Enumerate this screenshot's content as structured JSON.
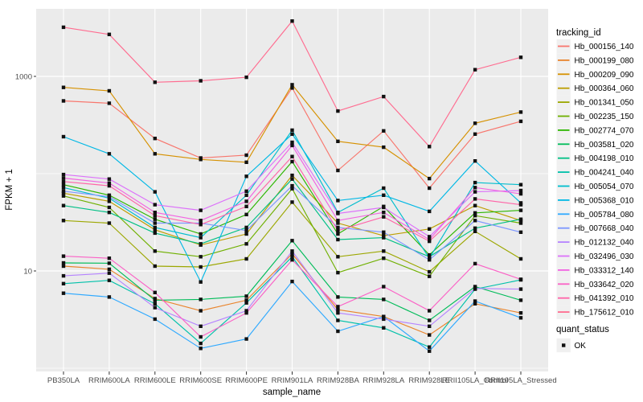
{
  "chart_data": {
    "type": "line",
    "title": "",
    "xlabel": "sample_name",
    "ylabel": "FPKM + 1",
    "y_scale": "log10",
    "y_ticks": [
      1000,
      10
    ],
    "y_minor": [
      100,
      1
    ],
    "grid": true,
    "legend_position": "right",
    "legend_title": "tracking_id",
    "quant_legend": {
      "title": "quant_status",
      "entries": [
        "OK"
      ]
    },
    "categories": [
      "PB350LA",
      "RRIM600LA",
      "RRIM600LE",
      "RRIM600SE",
      "RRIM600PE",
      "RRIM901LA",
      "RRIM928BA",
      "RRIM928LA",
      "RRIM928LE",
      "RRII105LA_Control",
      "RRII105LA_Stressed"
    ],
    "series": [
      {
        "name": "Hb_000156_140",
        "color": "#F8766D",
        "values": [
          560,
          530,
          230,
          145,
          155,
          760,
          108,
          275,
          71,
          255,
          345
        ]
      },
      {
        "name": "Hb_000199_080",
        "color": "#E9842C",
        "values": [
          11.2,
          10.4,
          5.2,
          3.9,
          5.0,
          15.0,
          4.0,
          3.4,
          2.2,
          4.6,
          3.7
        ]
      },
      {
        "name": "Hb_000209_090",
        "color": "#D69100",
        "values": [
          770,
          710,
          160,
          140,
          131,
          820,
          215,
          187,
          89,
          330,
          430
        ]
      },
      {
        "name": "Hb_000364_060",
        "color": "#BC9D00",
        "values": [
          63,
          52,
          26.5,
          18.5,
          24,
          96,
          31,
          23,
          27,
          47,
          33
        ]
      },
      {
        "name": "Hb_001341_050",
        "color": "#9CA700",
        "values": [
          33,
          31,
          11.2,
          11.0,
          13.3,
          51,
          14.0,
          16.0,
          9.8,
          25.5,
          13.3
        ]
      },
      {
        "name": "Hb_002235_150",
        "color": "#6FB000",
        "values": [
          59,
          45,
          16,
          14,
          19,
          70,
          9.6,
          13.5,
          8.8,
          37,
          31
        ]
      },
      {
        "name": "Hb_002774_070",
        "color": "#2CB600",
        "values": [
          77,
          60,
          34,
          24,
          38,
          133,
          24,
          46,
          14.6,
          39.5,
          42
        ]
      },
      {
        "name": "Hb_003581_020",
        "color": "#00BC59",
        "values": [
          12.1,
          12.0,
          5.0,
          5.1,
          5.5,
          20.5,
          5.4,
          5.1,
          3.1,
          6.9,
          5.0
        ]
      },
      {
        "name": "Hb_004198_010",
        "color": "#00C085",
        "values": [
          47,
          40,
          24.5,
          19,
          28,
          88,
          21,
          22,
          14.0,
          27.5,
          34
        ]
      },
      {
        "name": "Hb_004241_040",
        "color": "#00C1AA",
        "values": [
          7.4,
          8.0,
          4.6,
          1.8,
          4.7,
          14,
          3.1,
          2.6,
          1.65,
          6.5,
          8.1
        ]
      },
      {
        "name": "Hb_005054_070",
        "color": "#00BDCD",
        "values": [
          72,
          56,
          28,
          22,
          60,
          280,
          40,
          71,
          13.5,
          81,
          77
        ]
      },
      {
        "name": "Hb_005368_010",
        "color": "#00B8E5",
        "values": [
          240,
          160,
          65,
          7.7,
          94,
          255,
          53,
          60,
          41,
          135,
          50
        ]
      },
      {
        "name": "Hb_005784_080",
        "color": "#2FA9FF",
        "values": [
          5.9,
          5.4,
          3.2,
          1.6,
          2.0,
          7.8,
          2.4,
          3.4,
          1.5,
          4.9,
          3.3
        ]
      },
      {
        "name": "Hb_007668_040",
        "color": "#7C96FF",
        "values": [
          66,
          58,
          31,
          31,
          26,
          75,
          28,
          25,
          13.0,
          33,
          25
        ]
      },
      {
        "name": "Hb_012132_040",
        "color": "#B583FF",
        "values": [
          8.9,
          9.5,
          4.2,
          2.7,
          3.9,
          16,
          3.7,
          3.2,
          2.7,
          6.6,
          6.5
        ]
      },
      {
        "name": "Hb_032496_030",
        "color": "#DC71FA",
        "values": [
          98,
          88,
          48,
          42,
          66,
          210,
          39,
          45,
          22.5,
          65,
          67
        ]
      },
      {
        "name": "Hb_033312_140",
        "color": "#F263E2",
        "values": [
          90,
          80,
          40,
          33,
          52,
          195,
          33,
          40,
          21,
          72,
          62
        ]
      },
      {
        "name": "Hb_033642_020",
        "color": "#FB61C6",
        "values": [
          14.2,
          13.5,
          6.0,
          2.1,
          3.7,
          13.0,
          4.3,
          6.9,
          3.9,
          11.9,
          8.2
        ]
      },
      {
        "name": "Hb_041392_010",
        "color": "#FF65A8",
        "values": [
          83,
          75,
          37,
          30,
          46,
          150,
          26,
          36,
          20.2,
          55,
          48
        ]
      },
      {
        "name": "Hb_175612_010",
        "color": "#FF6C90",
        "values": [
          3200,
          2700,
          870,
          900,
          980,
          3700,
          440,
          620,
          190,
          1170,
          1570
        ]
      }
    ]
  },
  "colors": {
    "panel": "#EBEBEB",
    "grid": "#FFFFFF",
    "point": "#111111",
    "tick_mark": "#333333",
    "tick_text": "#4D4D4D",
    "legend_key": "#F0F0F0",
    "background": "#FFFFFF"
  }
}
